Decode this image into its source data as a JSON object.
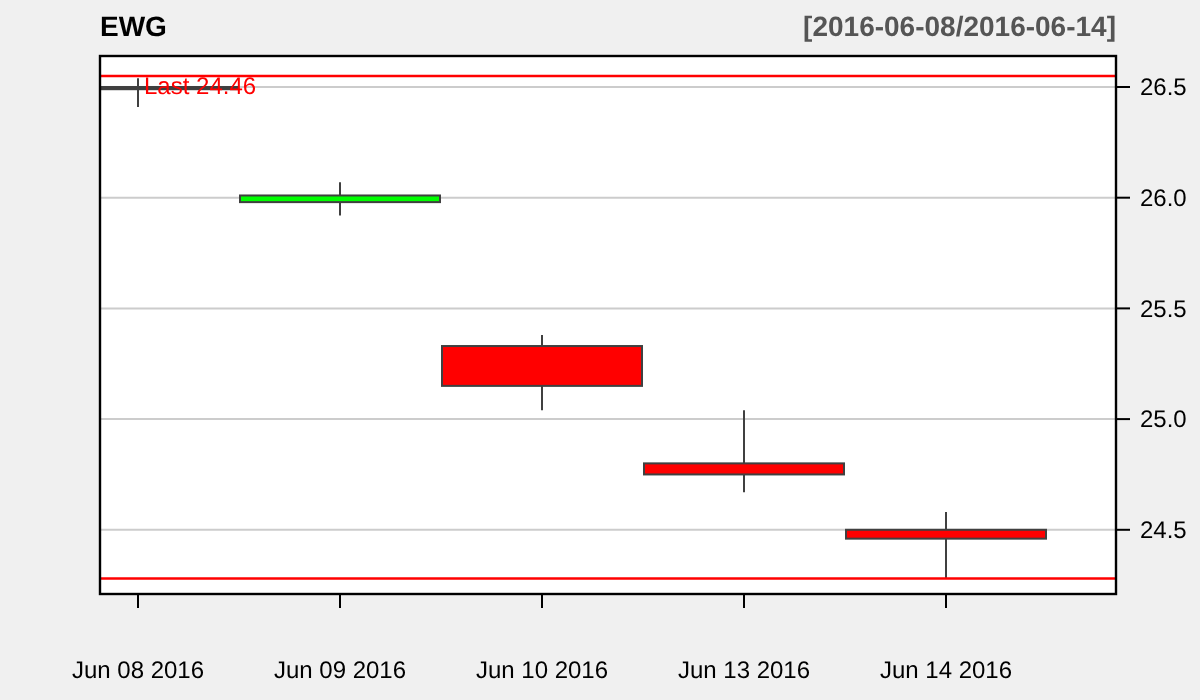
{
  "chart_data": {
    "type": "candlestick",
    "title": "EWG",
    "subtitle": "[2016-06-08/2016-06-14]",
    "categories": [
      "Jun 08 2016",
      "Jun 09 2016",
      "Jun 10 2016",
      "Jun 13 2016",
      "Jun 14 2016"
    ],
    "ohlc": [
      [
        26.5,
        26.54,
        26.41,
        26.49
      ],
      [
        25.98,
        26.07,
        25.92,
        26.01
      ],
      [
        25.33,
        25.38,
        25.04,
        25.15
      ],
      [
        24.8,
        25.04,
        24.67,
        24.75
      ],
      [
        24.5,
        24.58,
        24.28,
        24.46
      ]
    ],
    "colors": [
      "#404040",
      "#00ff00",
      "#ff0000",
      "#ff0000",
      "#ff0000"
    ],
    "ylim": [
      24.21,
      26.64
    ],
    "yticks": [
      {
        "value": 24.5,
        "label": "24.5"
      },
      {
        "value": 25,
        "label": "25.0"
      },
      {
        "value": 25.5,
        "label": "25.5"
      },
      {
        "value": 26,
        "label": "26.0"
      },
      {
        "value": 26.5,
        "label": "26.5"
      }
    ],
    "grid": "y",
    "ref_lines": [
      {
        "axis": "y",
        "value": 26.55,
        "color": "#ff0000"
      },
      {
        "axis": "y",
        "value": 24.28,
        "color": "#ff0000"
      }
    ],
    "annotations": [
      "Last 24.46"
    ]
  }
}
